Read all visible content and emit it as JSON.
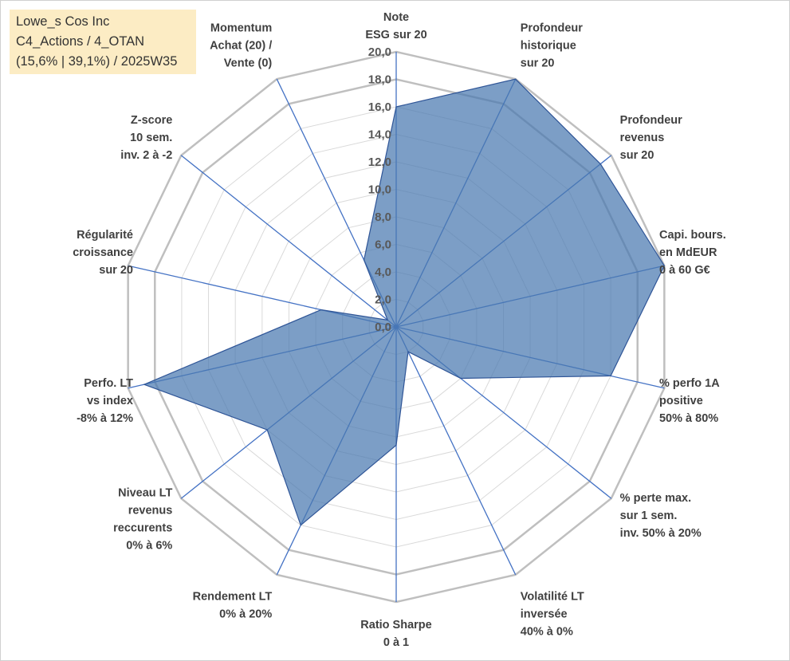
{
  "title_lines": [
    "Lowe_s Cos Inc",
    "C4_Actions / 4_OTAN",
    "(15,6% | 39,1%) / 2025W35"
  ],
  "colors": {
    "fill": "#4a78b0",
    "spoke": "#4472c4",
    "grid": "#bfbfbf",
    "title_bg": "#fcecc4"
  },
  "chart_data": {
    "type": "radar",
    "scale_min": 0,
    "scale_max": 20,
    "scale_step": 2,
    "tick_labels": [
      "0,0",
      "2,0",
      "4,0",
      "6,0",
      "8,0",
      "10,0",
      "12,0",
      "14,0",
      "16,0",
      "18,0",
      "20,0"
    ],
    "axes": [
      {
        "label": [
          "Note",
          "ESG sur 20"
        ],
        "value": 16
      },
      {
        "label": [
          "Profondeur",
          "historique",
          "sur 20"
        ],
        "value": 20
      },
      {
        "label": [
          "Profondeur",
          "revenus",
          "sur 20"
        ],
        "value": 19
      },
      {
        "label": [
          "Capi. bours.",
          "en MdEUR",
          "0 à 60 G€"
        ],
        "value": 20
      },
      {
        "label": [
          "% perfo 1A",
          "positive",
          "50% à 80%"
        ],
        "value": 16
      },
      {
        "label": [
          "% perte max.",
          "sur 1 sem.",
          "inv. 50% à 20%"
        ],
        "value": 6
      },
      {
        "label": [
          "Volatilité LT",
          "inversée",
          "40% à 0%"
        ],
        "value": 2
      },
      {
        "label": [
          "Ratio Sharpe",
          "0 à 1"
        ],
        "value": 8.6
      },
      {
        "label": [
          "Rendement LT",
          "0% à 20%"
        ],
        "value": 16
      },
      {
        "label": [
          "Niveau LT",
          "revenus",
          "reccurents",
          "0% à 6%"
        ],
        "value": 12
      },
      {
        "label": [
          "Perfo. LT",
          "vs index",
          "-8% à 12%"
        ],
        "value": 18.8
      },
      {
        "label": [
          "Régularité",
          "croissance",
          "sur 20"
        ],
        "value": 5.6
      },
      {
        "label": [
          "Z-score",
          "10 sem.",
          "inv. 2 à -2"
        ],
        "value": 0.8
      },
      {
        "label": [
          "Momentum",
          "Achat (20) /",
          "Vente (0)"
        ],
        "value": 5.4
      }
    ]
  }
}
